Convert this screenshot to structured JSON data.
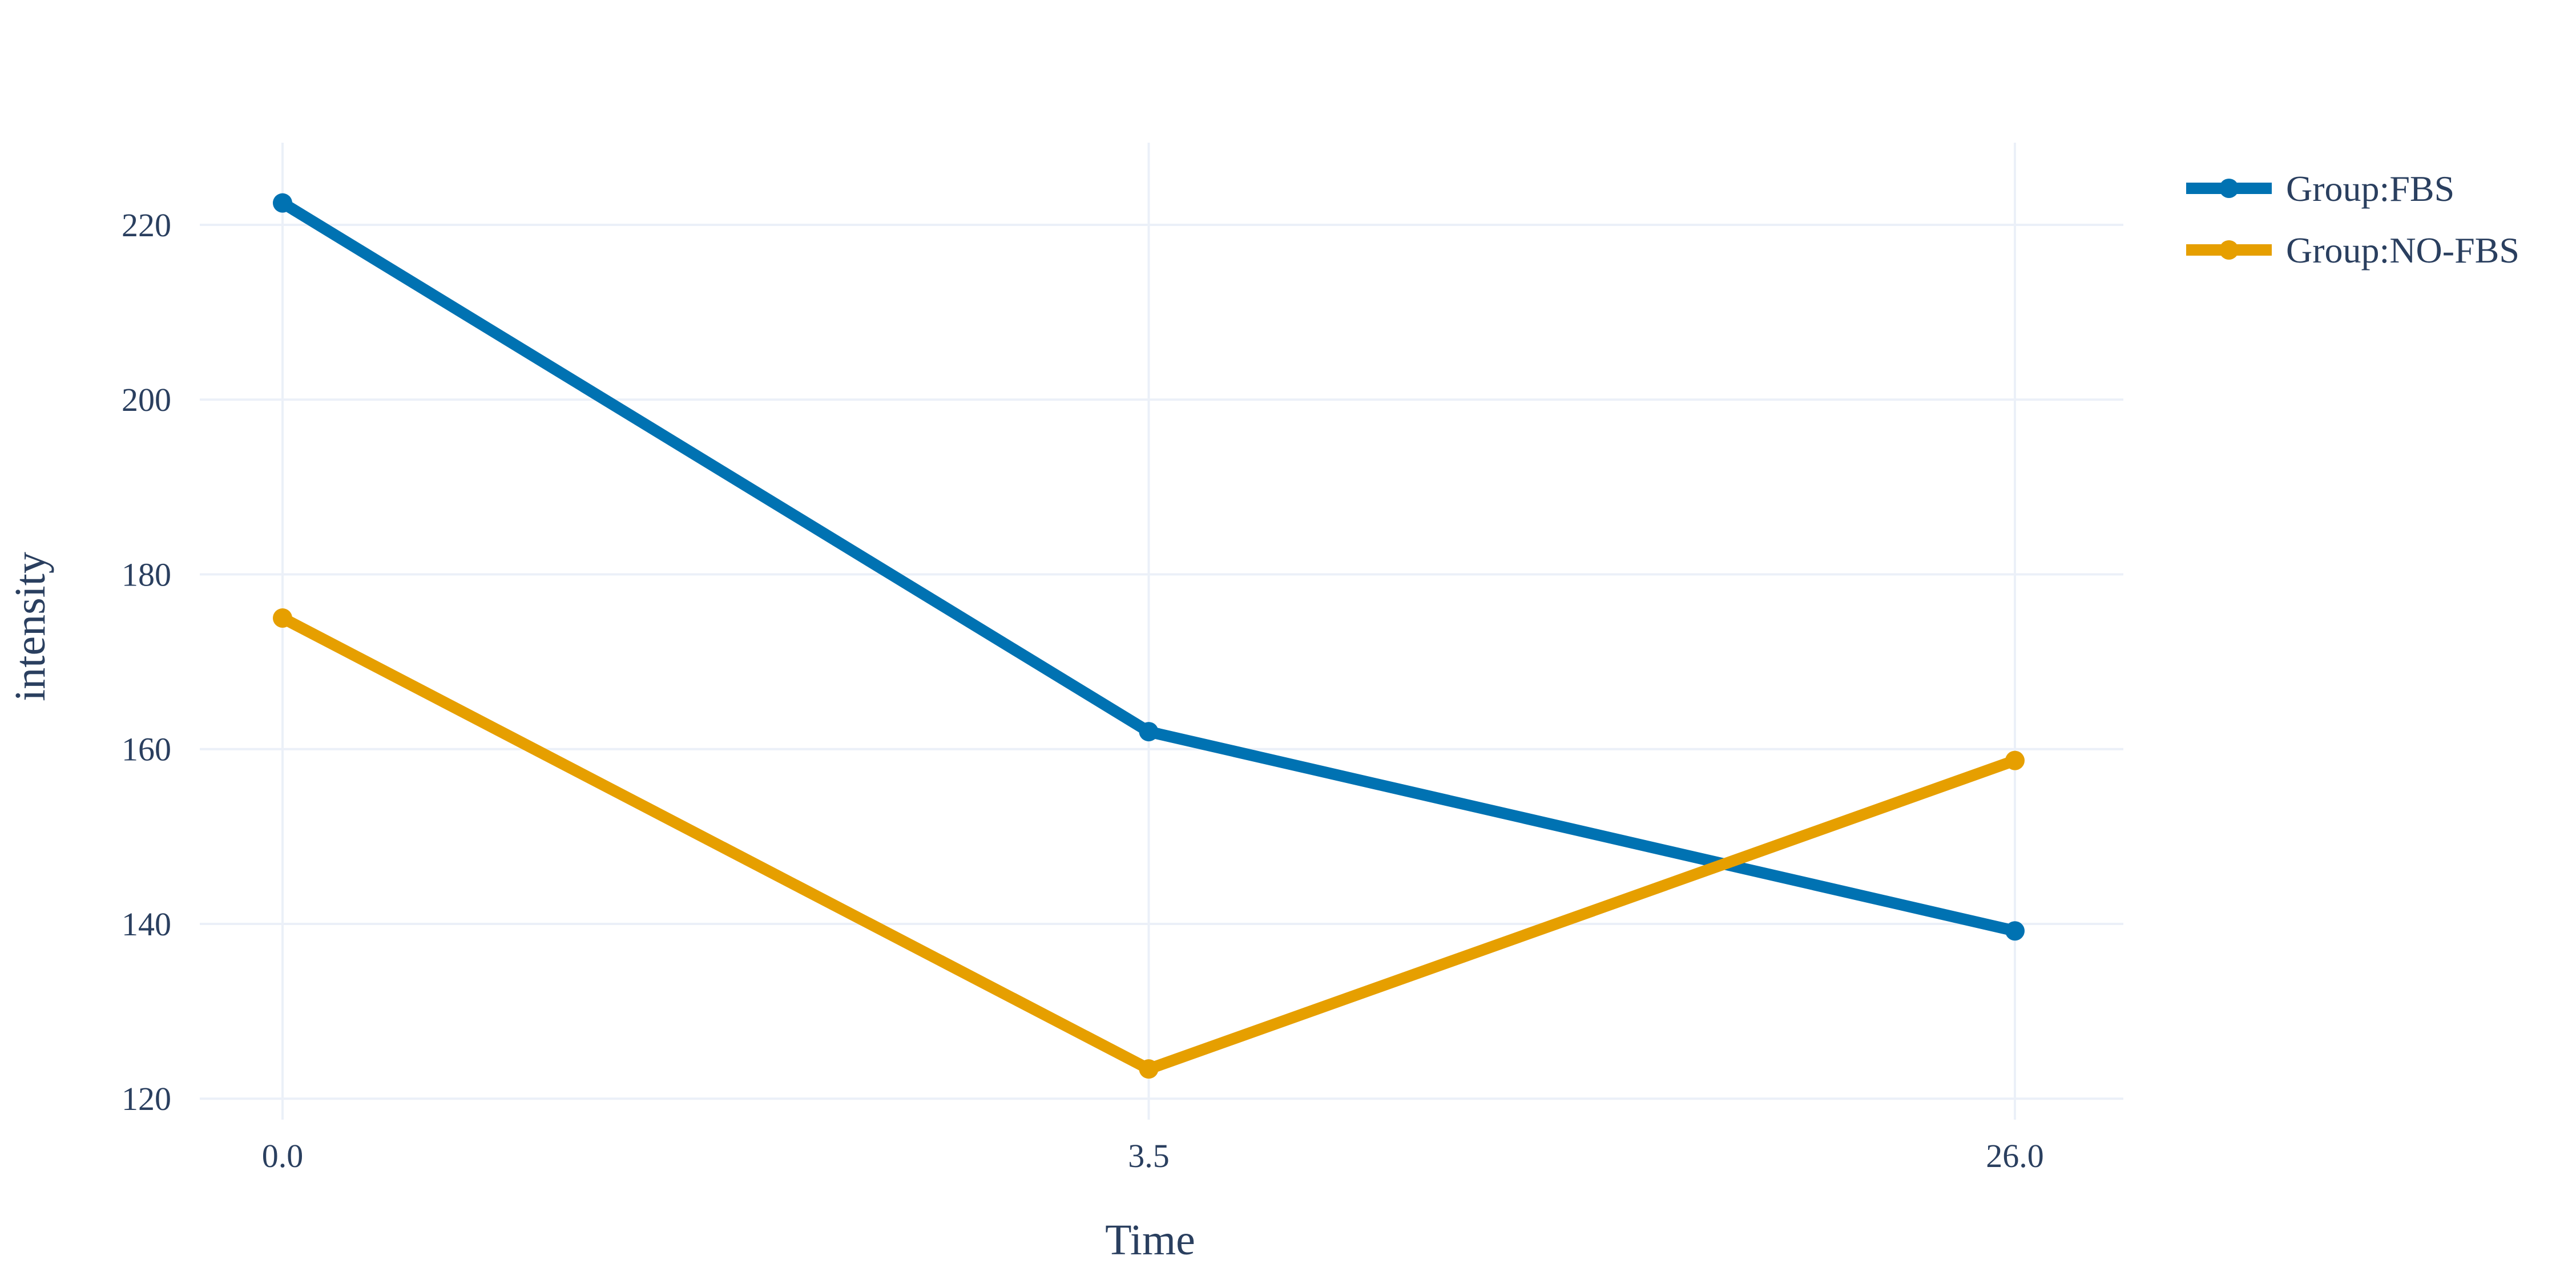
{
  "chart_data": {
    "type": "line",
    "title": "",
    "xlabel": "Time",
    "ylabel": "intensity",
    "x_axis_type": "category",
    "categories": [
      "0.0",
      "3.5",
      "26.0"
    ],
    "y_ticks": [
      "120",
      "140",
      "160",
      "180",
      "200",
      "220"
    ],
    "ylim": [
      117.6,
      229.4
    ],
    "grid": true,
    "legend_position": "top-right",
    "series": [
      {
        "name": "Group:FBS",
        "color": "#0072b2",
        "values": [
          222.5,
          162.0,
          139.2
        ]
      },
      {
        "name": "Group:NO-FBS",
        "color": "#e69f00",
        "values": [
          175.0,
          123.4,
          158.7
        ]
      }
    ]
  }
}
